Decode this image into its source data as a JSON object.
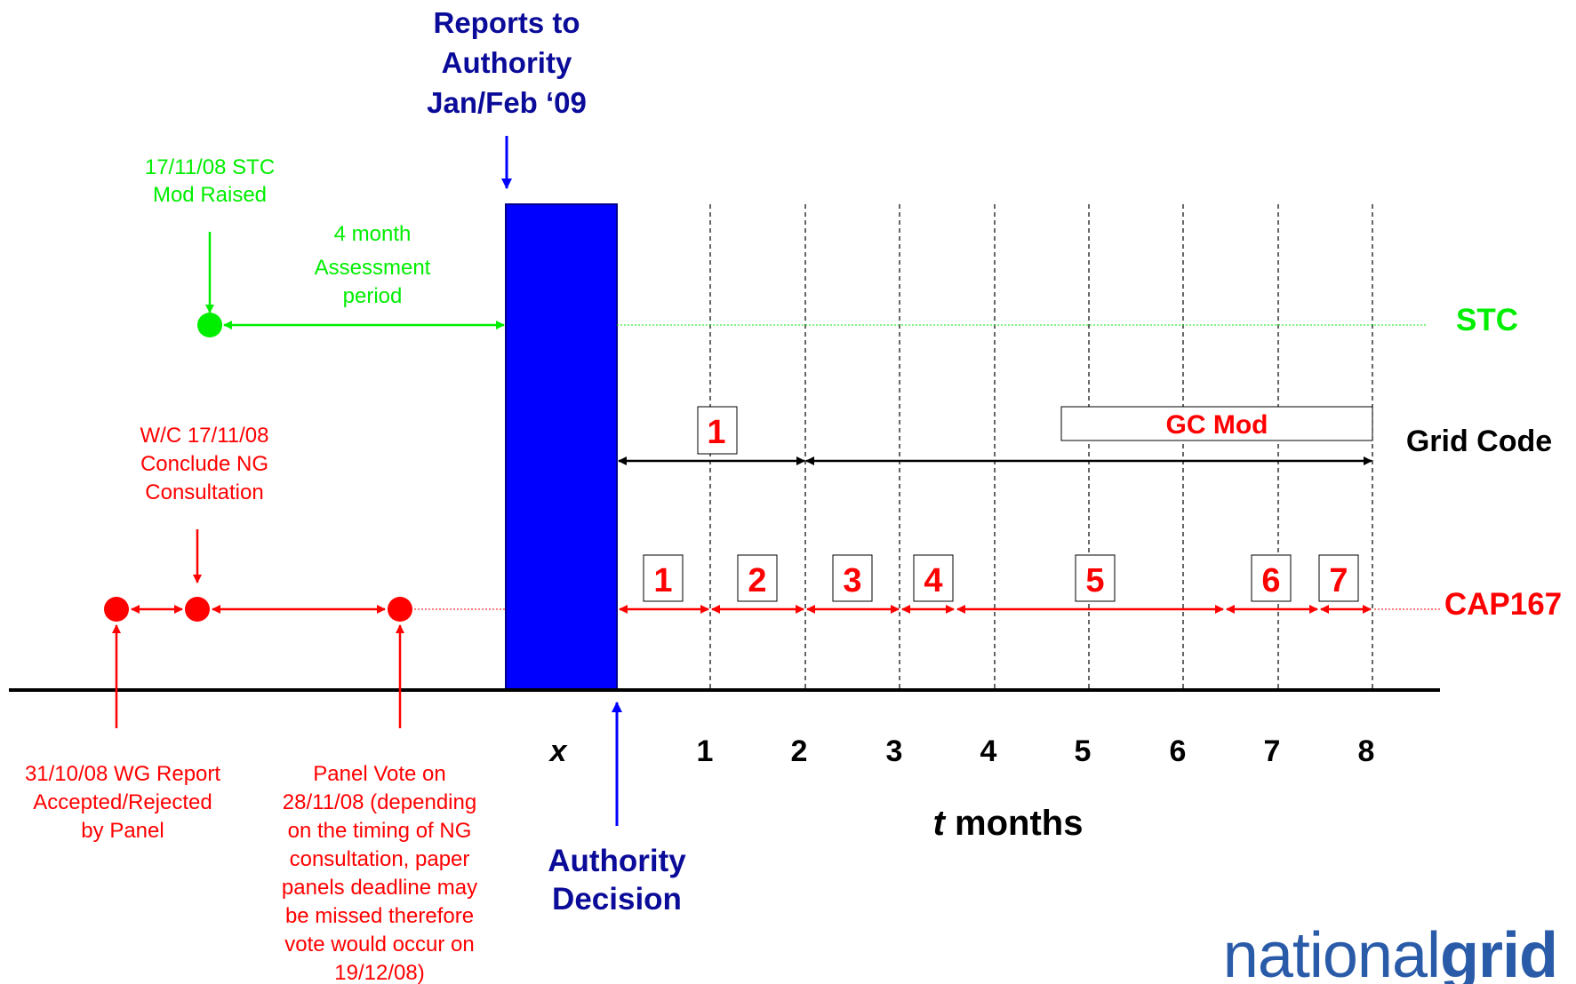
{
  "reports": {
    "line1": "Reports to",
    "line2": "Authority",
    "line3": "Jan/Feb ‘09"
  },
  "stc_raised": {
    "line1": "17/11/08 STC",
    "line2": "Mod Raised"
  },
  "assessment": {
    "line1": "4 month",
    "line2": "Assessment",
    "line3": "period"
  },
  "row_labels": {
    "stc": "STC",
    "grid_code": "Grid Code",
    "cap167": "CAP167"
  },
  "gc_mod": "GC Mod",
  "grid_code_step": "1",
  "cap_steps": [
    "1",
    "2",
    "3",
    "4",
    "5",
    "6",
    "7"
  ],
  "wc": {
    "line1": "W/C 17/11/08",
    "line2": "Conclude NG",
    "line3": "Consultation"
  },
  "wg_report": {
    "line1": "31/10/08 WG Report",
    "line2": "Accepted/Rejected",
    "line3": "by Panel"
  },
  "panel_vote": {
    "line1": "Panel Vote on",
    "line2": "28/11/08 (depending",
    "line3": "on the timing of NG",
    "line4": "consultation, paper",
    "line5": "panels deadline may",
    "line6": "be missed therefore",
    "line7": "vote would occur on",
    "line8": "19/12/08)"
  },
  "authority_decision": {
    "line1": "Authority",
    "line2": "Decision"
  },
  "axis": {
    "x_label": "x",
    "ticks": [
      "1",
      "2",
      "3",
      "4",
      "5",
      "6",
      "7",
      "8"
    ],
    "title_t": "t",
    "title_rest": " months"
  },
  "logo": {
    "part1": "national",
    "part2": "grid"
  },
  "colors": {
    "green": "#00ee00",
    "red": "#ff0000",
    "blue_bar": "#0000ff",
    "navy_text": "#0b0b99",
    "logo_blue": "#2a5ba8"
  }
}
